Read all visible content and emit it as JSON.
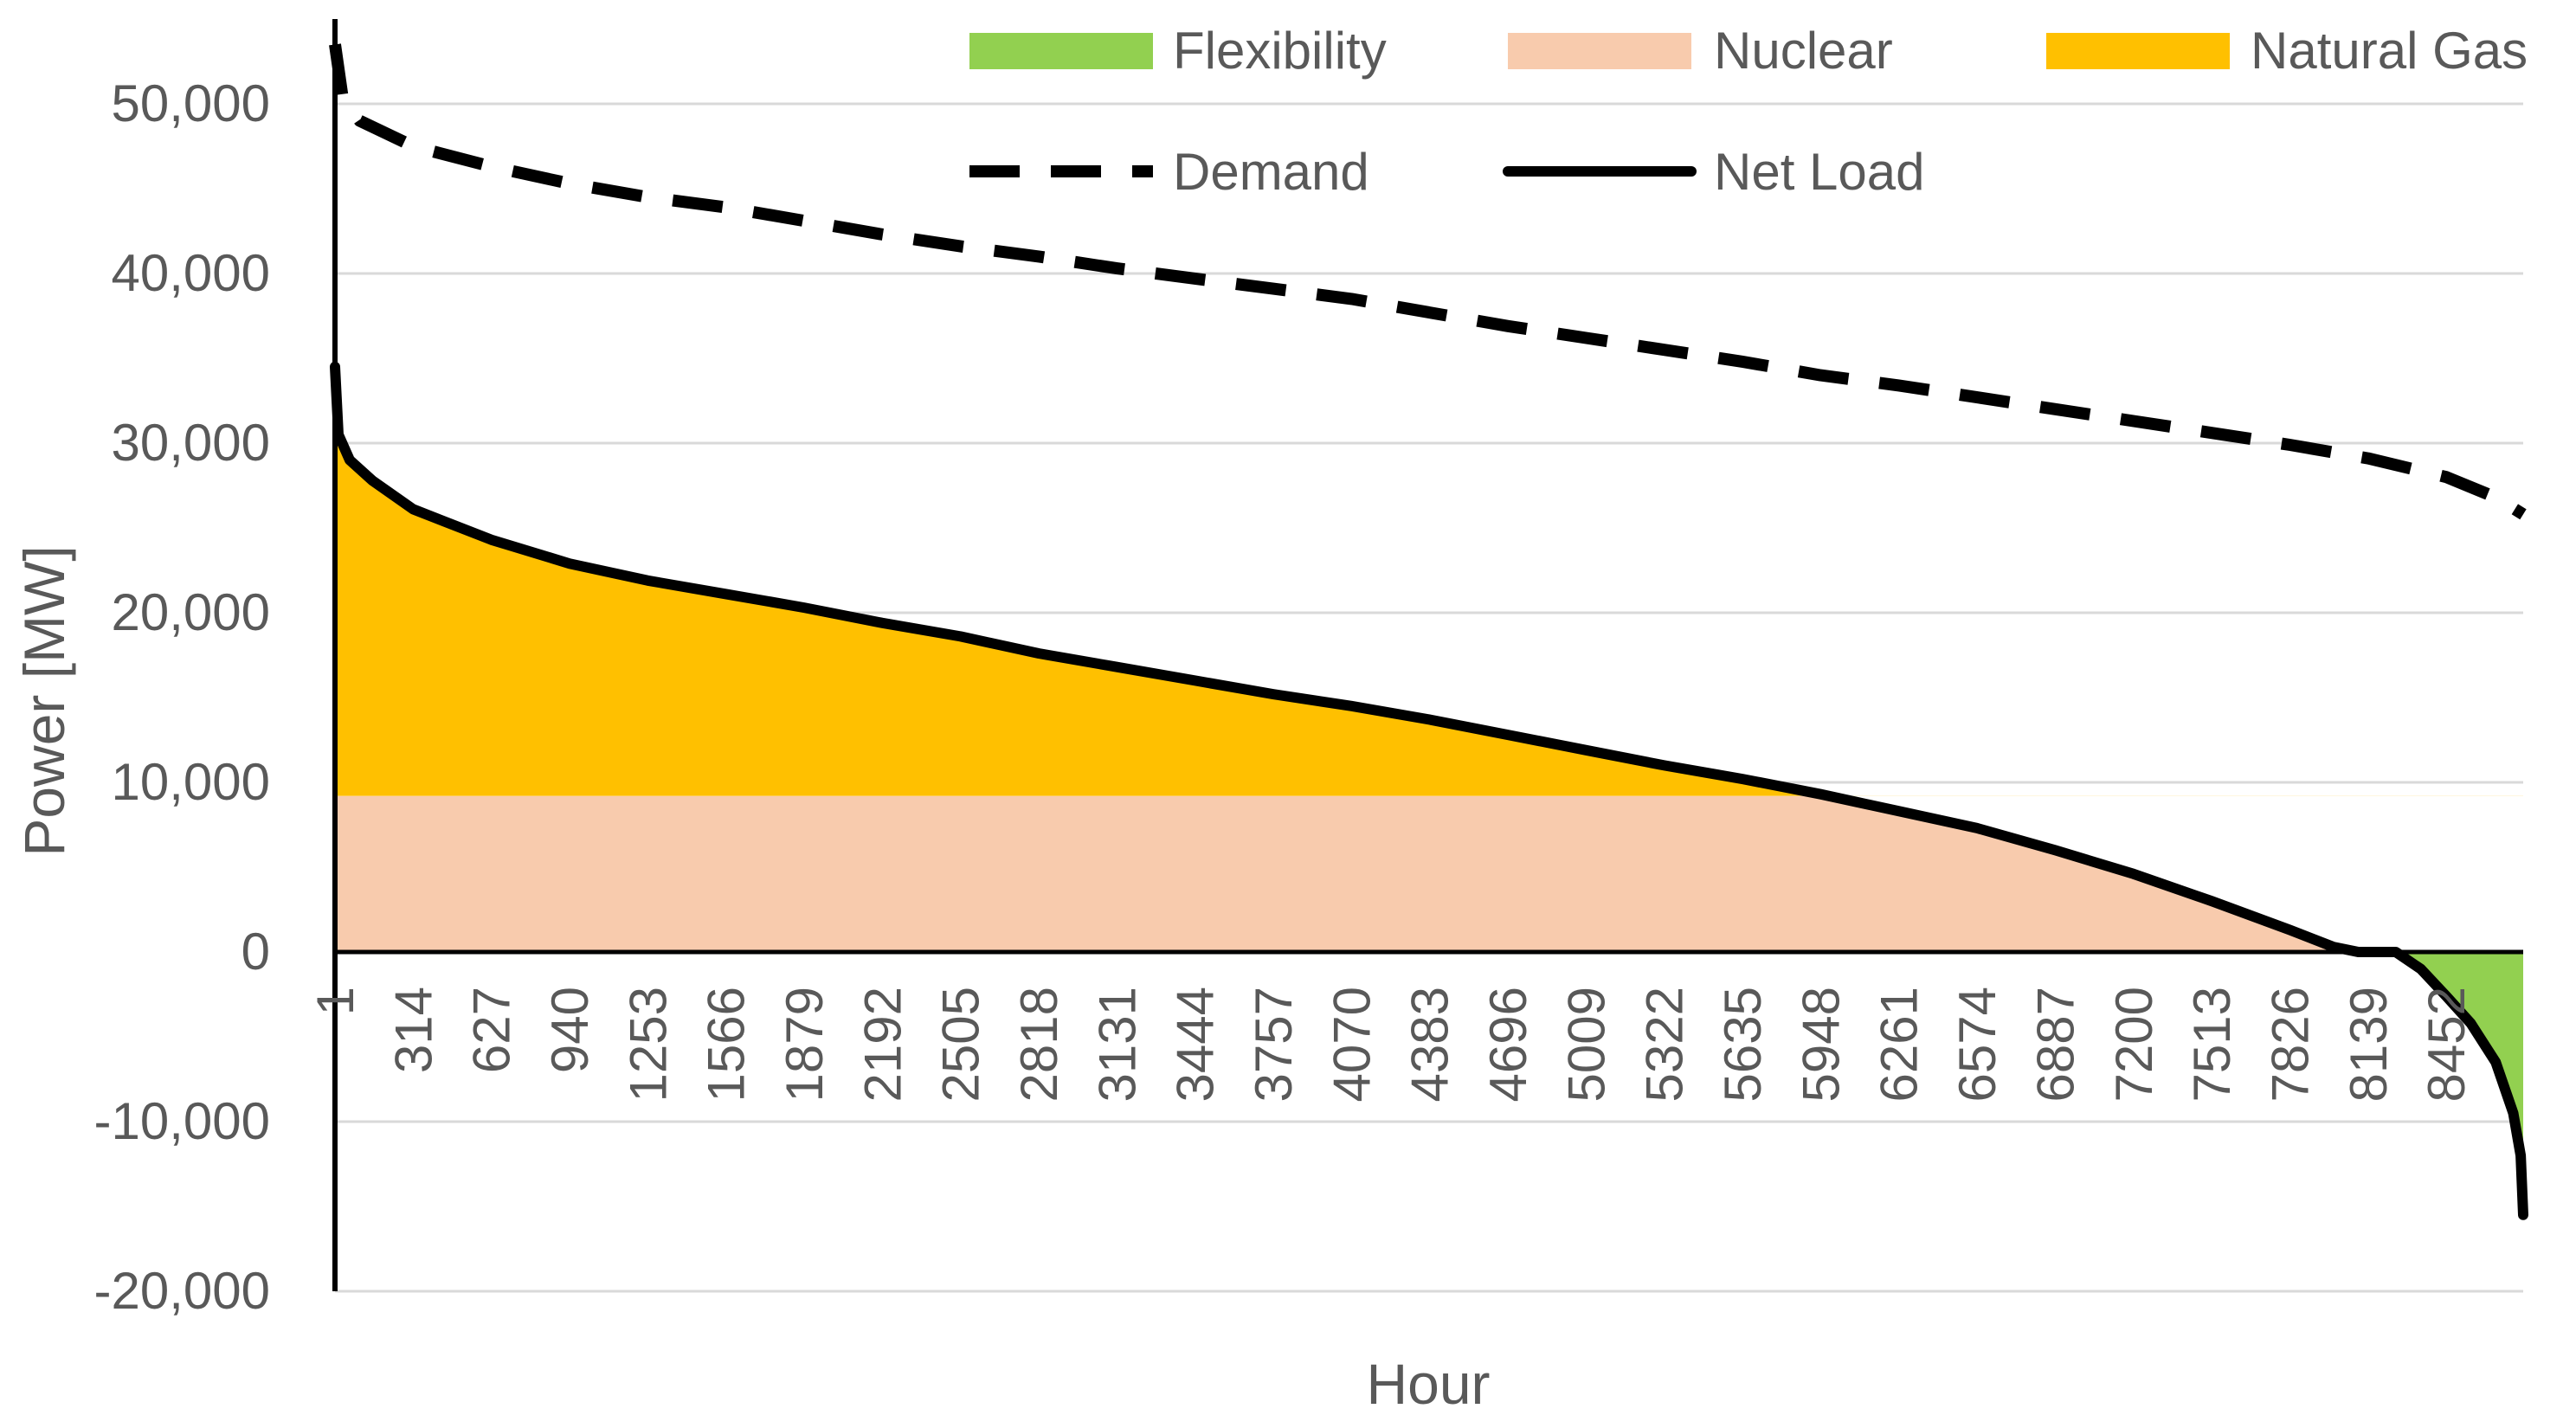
{
  "chart_data": {
    "type": "area",
    "title": "",
    "xlabel": "Hour",
    "ylabel": "Power [MW]",
    "ylim": [
      -20000,
      55000
    ],
    "xlim": [
      1,
      8760
    ],
    "y_ticks": [
      -20000,
      -10000,
      0,
      10000,
      20000,
      30000,
      40000,
      50000
    ],
    "y_tick_labels": [
      "-20,000",
      "-10,000",
      "0",
      "10,000",
      "20,000",
      "30,000",
      "40,000",
      "50,000"
    ],
    "x_tick_labels": [
      "1",
      "314",
      "627",
      "940",
      "1253",
      "1566",
      "1879",
      "2192",
      "2505",
      "2818",
      "3131",
      "3444",
      "3757",
      "4070",
      "4383",
      "4696",
      "5009",
      "5322",
      "5635",
      "5948",
      "6261",
      "6574",
      "6887",
      "7200",
      "7513",
      "7826",
      "8139",
      "8452"
    ],
    "nuclear_capacity": 9200,
    "legend": [
      {
        "label": "Flexibility",
        "kind": "area",
        "color": "#92d050"
      },
      {
        "label": "Nuclear",
        "kind": "area",
        "color": "#f8cbad"
      },
      {
        "label": "Natural Gas",
        "kind": "area",
        "color": "#ffc000"
      },
      {
        "label": "Demand",
        "kind": "dashed-line",
        "color": "#000000"
      },
      {
        "label": "Net Load",
        "kind": "line",
        "color": "#000000"
      }
    ],
    "series": [
      {
        "name": "Demand",
        "points": [
          [
            1,
            53500
          ],
          [
            30,
            50500
          ],
          [
            100,
            49000
          ],
          [
            314,
            47500
          ],
          [
            627,
            46300
          ],
          [
            940,
            45300
          ],
          [
            1253,
            44500
          ],
          [
            1566,
            43900
          ],
          [
            1879,
            43100
          ],
          [
            2192,
            42300
          ],
          [
            2505,
            41600
          ],
          [
            2818,
            41000
          ],
          [
            3131,
            40300
          ],
          [
            3444,
            39700
          ],
          [
            3757,
            39100
          ],
          [
            4070,
            38500
          ],
          [
            4383,
            37700
          ],
          [
            4696,
            36900
          ],
          [
            5009,
            36200
          ],
          [
            5322,
            35500
          ],
          [
            5635,
            34800
          ],
          [
            5948,
            34000
          ],
          [
            6261,
            33400
          ],
          [
            6574,
            32700
          ],
          [
            6887,
            32000
          ],
          [
            7200,
            31300
          ],
          [
            7513,
            30600
          ],
          [
            7826,
            29900
          ],
          [
            8139,
            29100
          ],
          [
            8452,
            28000
          ],
          [
            8650,
            26800
          ],
          [
            8760,
            25800
          ]
        ]
      },
      {
        "name": "Net Load",
        "points": [
          [
            1,
            34500
          ],
          [
            15,
            30500
          ],
          [
            60,
            29000
          ],
          [
            150,
            27800
          ],
          [
            314,
            26100
          ],
          [
            627,
            24300
          ],
          [
            940,
            22900
          ],
          [
            1253,
            21900
          ],
          [
            1566,
            21100
          ],
          [
            1879,
            20300
          ],
          [
            2192,
            19400
          ],
          [
            2505,
            18600
          ],
          [
            2818,
            17600
          ],
          [
            3131,
            16800
          ],
          [
            3444,
            16000
          ],
          [
            3757,
            15200
          ],
          [
            4070,
            14500
          ],
          [
            4383,
            13700
          ],
          [
            4696,
            12800
          ],
          [
            5009,
            11900
          ],
          [
            5322,
            11000
          ],
          [
            5635,
            10200
          ],
          [
            5948,
            9300
          ],
          [
            6261,
            8300
          ],
          [
            6574,
            7300
          ],
          [
            6887,
            6000
          ],
          [
            7200,
            4600
          ],
          [
            7513,
            3000
          ],
          [
            7826,
            1300
          ],
          [
            8000,
            300
          ],
          [
            8100,
            0
          ],
          [
            8250,
            0
          ],
          [
            8350,
            -1000
          ],
          [
            8452,
            -2600
          ],
          [
            8550,
            -4200
          ],
          [
            8650,
            -6500
          ],
          [
            8720,
            -9500
          ],
          [
            8750,
            -12000
          ],
          [
            8760,
            -15500
          ]
        ]
      }
    ]
  }
}
